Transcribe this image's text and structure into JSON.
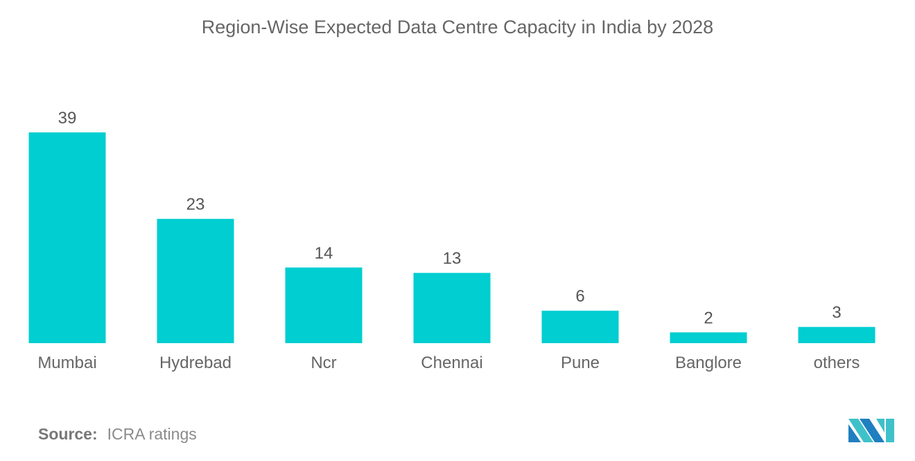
{
  "chart_data": {
    "type": "bar",
    "title": "Region-Wise Expected Data Centre Capacity in India by 2028",
    "categories": [
      "Mumbai",
      "Hydrebad",
      "Ncr",
      "Chennai",
      "Pune",
      "Banglore",
      "others"
    ],
    "values": [
      39,
      23,
      14,
      13,
      6,
      2,
      3
    ],
    "xlabel": "",
    "ylabel": "",
    "ylim": [
      0,
      39
    ],
    "grid": false,
    "bar_color": "#00CED1"
  },
  "source": {
    "label": "Source:",
    "text": "ICRA ratings"
  },
  "logo": {
    "colors": [
      "#1F7FC0",
      "#3FC1C9"
    ]
  }
}
